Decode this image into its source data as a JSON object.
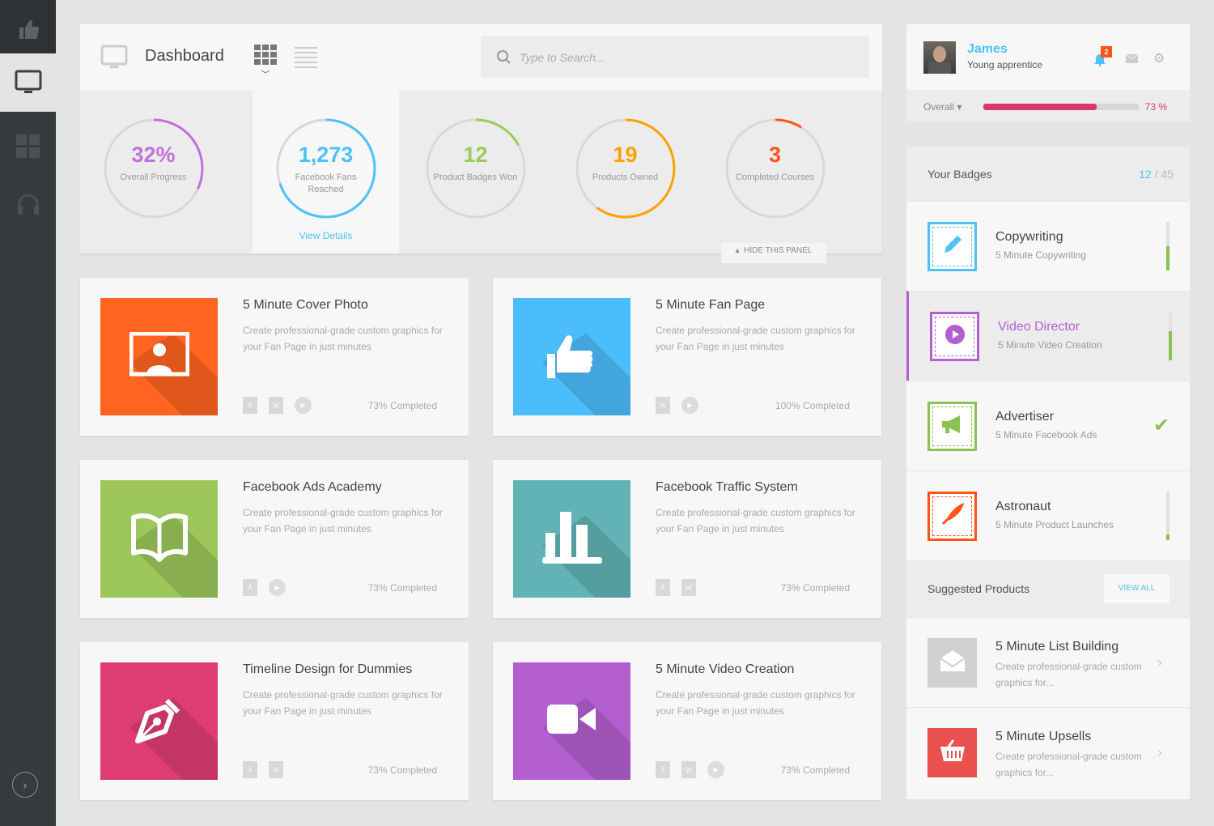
{
  "header": {
    "title": "Dashboard",
    "search_placeholder": "Type to Search..."
  },
  "stats": [
    {
      "value": "32%",
      "label": "Overall Progress",
      "color": "#c26fe0",
      "fraction": 0.32
    },
    {
      "value": "1,273",
      "label": "Facebook Fans Reached",
      "color": "#4fc1f9",
      "fraction": 0.7,
      "link": "View Details"
    },
    {
      "value": "12",
      "label": "Product Badges Won",
      "color": "#9ccc55",
      "fraction": 0.17
    },
    {
      "value": "19",
      "label": "Products Owned",
      "color": "#ffa000",
      "fraction": 0.6
    },
    {
      "value": "3",
      "label": "Completed Courses",
      "color": "#ff5418",
      "fraction": 0.09
    }
  ],
  "hide_panel": "HIDE THIS PANEL",
  "courses": [
    {
      "title": "5 Minute Cover Photo",
      "desc": "Create professional-grade custom graphics for your Fan Page in just minutes",
      "progress": "73% Completed",
      "color": "#ff6420",
      "icon": "portrait-icon",
      "files": [
        "pdf",
        "word",
        "video"
      ]
    },
    {
      "title": "5 Minute Fan Page",
      "desc": "Create professional-grade custom graphics for your Fan Page in just minutes",
      "progress": "100% Completed",
      "color": "#4cbdfb",
      "icon": "thumbs-up-icon",
      "files": [
        "word",
        "video"
      ]
    },
    {
      "title": "Facebook Ads Academy",
      "desc": "Create professional-grade custom graphics for your Fan Page in just minutes",
      "progress": "73% Completed",
      "color": "#9dc75a",
      "icon": "book-icon",
      "files": [
        "pdf",
        "video"
      ]
    },
    {
      "title": "Facebook Traffic System",
      "desc": "Create professional-grade custom graphics for your Fan Page in just minutes",
      "progress": "73% Completed",
      "color": "#62b3b5",
      "icon": "bar-chart-icon",
      "files": [
        "pdf",
        "word"
      ]
    },
    {
      "title": "Timeline Design for Dummies",
      "desc": "Create professional-grade custom graphics for your Fan Page in just minutes",
      "progress": "73% Completed",
      "color": "#de3d71",
      "icon": "pen-nib-icon",
      "files": [
        "pdf",
        "word"
      ]
    },
    {
      "title": "5 Minute Video Creation",
      "desc": "Create professional-grade custom graphics for your Fan Page in just minutes",
      "progress": "73% Completed",
      "color": "#b45fd0",
      "icon": "video-camera-icon",
      "files": [
        "pdf",
        "word",
        "video"
      ]
    }
  ],
  "profile": {
    "name": "James",
    "role": "Young apprentice",
    "notifications": "2",
    "overall_label": "Overall",
    "overall_pct": "73 %",
    "overall_value": 73
  },
  "badges": {
    "title": "Your Badges",
    "earned": "12",
    "total": "/ 45",
    "items": [
      {
        "title": "Copywriting",
        "sub": "5 Minute Copywriting",
        "color": "#4fc1f9",
        "icon": "pencil-icon",
        "progress": 0.5
      },
      {
        "title": "Video Director",
        "sub": "5 Minute Video Creation",
        "color": "#b45fd0",
        "icon": "play-icon",
        "progress": 0.6,
        "active": true
      },
      {
        "title": "Advertiser",
        "sub": "5 Minute Facebook Ads",
        "color": "#8cc152",
        "icon": "megaphone-icon",
        "done": true
      },
      {
        "title": "Astronaut",
        "sub": "5 Minute Product Launches",
        "color": "#ff5418",
        "icon": "rocket-icon",
        "progress": 0.12
      }
    ]
  },
  "suggested": {
    "title": "Suggested Products",
    "view_all": "VIEW ALL",
    "items": [
      {
        "title": "5 Minute List Building",
        "desc": "Create professional-grade custom graphics for...",
        "color": "#d0d0d0",
        "icon": "envelope-icon"
      },
      {
        "title": "5 Minute Upsells",
        "desc": "Create professional-grade custom graphics for...",
        "color": "#e9514f",
        "icon": "basket-icon"
      }
    ]
  }
}
